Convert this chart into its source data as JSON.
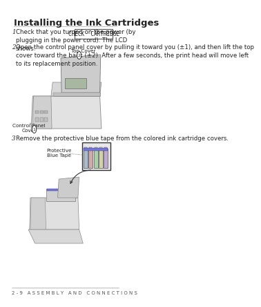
{
  "bg_color": "#ffffff",
  "title": "Installing the Ink Cartridges",
  "title_fontsize": 9.5,
  "step1_num": "1",
  "step1_text": "Check that you turned on the power (by\nplugging in the power cord). The LCD\nshows:",
  "step1_box_text": "CHECK  CARTRIDGE",
  "step2_num": "2",
  "step2_text": "Open the control panel cover by pulling it toward you (±1), and then lift the top\ncover toward the back (±2). After a few seconds, the print head will move left\nto its replacement position.",
  "step3_num": "3",
  "step3_text": "Remove the protective blue tape from the colored ink cartridge covers.",
  "label_top_cover": "Top Cover",
  "label_control_panel": "Control Panel\nCover",
  "label_protective": "Protective\nBlue Tape",
  "footer_text": "2 - 9   A S S E M B L Y   A N D   C O N N E C T I O N S",
  "text_color": "#222222",
  "font_size_body": 6.2,
  "font_size_label": 5.2,
  "font_size_footer": 5.0
}
